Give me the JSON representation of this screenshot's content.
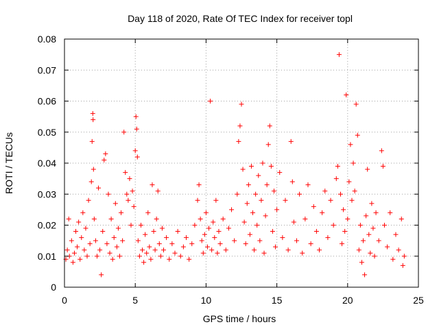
{
  "chart_data": {
    "type": "scatter",
    "title": "Day 118 of 2020, Rate Of TEC Index for receiver topl",
    "xlabel": "GPS time / hours",
    "ylabel": "ROTI / TECUs",
    "xlim": [
      0,
      25
    ],
    "ylim": [
      0,
      0.08
    ],
    "x_ticks": [
      0,
      5,
      10,
      15,
      20,
      25
    ],
    "x_tick_labels": [
      "0",
      "5",
      "10",
      "15",
      "20",
      "25"
    ],
    "y_ticks": [
      0,
      0.01,
      0.02,
      0.03,
      0.04,
      0.05,
      0.06,
      0.07,
      0.08
    ],
    "y_tick_labels": [
      "0",
      "0.01",
      "0.02",
      "0.03",
      "0.04",
      "0.05",
      "0.06",
      "0.07",
      "0.08"
    ],
    "grid": true,
    "marker": "+",
    "series": [
      {
        "name": "ROTI",
        "color": "#ff0000",
        "points": [
          [
            0.1,
            0.009
          ],
          [
            0.2,
            0.012
          ],
          [
            0.3,
            0.022
          ],
          [
            0.35,
            0.01
          ],
          [
            0.5,
            0.015
          ],
          [
            0.6,
            0.008
          ],
          [
            0.7,
            0.011
          ],
          [
            0.8,
            0.018
          ],
          [
            0.9,
            0.013
          ],
          [
            1.0,
            0.021
          ],
          [
            1.1,
            0.009
          ],
          [
            1.2,
            0.016
          ],
          [
            1.3,
            0.024
          ],
          [
            1.4,
            0.012
          ],
          [
            1.5,
            0.019
          ],
          [
            1.6,
            0.01
          ],
          [
            1.7,
            0.028
          ],
          [
            1.8,
            0.014
          ],
          [
            1.9,
            0.034
          ],
          [
            1.95,
            0.047
          ],
          [
            2.0,
            0.056
          ],
          [
            2.02,
            0.054
          ],
          [
            2.05,
            0.038
          ],
          [
            2.1,
            0.022
          ],
          [
            2.2,
            0.015
          ],
          [
            2.3,
            0.01
          ],
          [
            2.4,
            0.032
          ],
          [
            2.5,
            0.012
          ],
          [
            2.6,
            0.004
          ],
          [
            2.7,
            0.018
          ],
          [
            2.8,
            0.041
          ],
          [
            2.9,
            0.043
          ],
          [
            3.0,
            0.014
          ],
          [
            3.1,
            0.03
          ],
          [
            3.2,
            0.011
          ],
          [
            3.3,
            0.022
          ],
          [
            3.4,
            0.009
          ],
          [
            3.5,
            0.016
          ],
          [
            3.6,
            0.027
          ],
          [
            3.7,
            0.013
          ],
          [
            3.8,
            0.019
          ],
          [
            3.9,
            0.01
          ],
          [
            4.0,
            0.024
          ],
          [
            4.1,
            0.015
          ],
          [
            4.2,
            0.05
          ],
          [
            4.3,
            0.037
          ],
          [
            4.4,
            0.03
          ],
          [
            4.5,
            0.028
          ],
          [
            4.6,
            0.035
          ],
          [
            4.7,
            0.02
          ],
          [
            4.8,
            0.031
          ],
          [
            4.9,
            0.026
          ],
          [
            5.0,
            0.044
          ],
          [
            5.05,
            0.055
          ],
          [
            5.1,
            0.051
          ],
          [
            5.15,
            0.042
          ],
          [
            5.2,
            0.015
          ],
          [
            5.3,
            0.01
          ],
          [
            5.4,
            0.02
          ],
          [
            5.5,
            0.012
          ],
          [
            5.6,
            0.008
          ],
          [
            5.7,
            0.017
          ],
          [
            5.8,
            0.011
          ],
          [
            5.9,
            0.024
          ],
          [
            6.0,
            0.013
          ],
          [
            6.1,
            0.009
          ],
          [
            6.2,
            0.033
          ],
          [
            6.3,
            0.018
          ],
          [
            6.4,
            0.012
          ],
          [
            6.5,
            0.022
          ],
          [
            6.6,
            0.031
          ],
          [
            6.7,
            0.014
          ],
          [
            6.8,
            0.01
          ],
          [
            6.9,
            0.019
          ],
          [
            7.0,
            0.012
          ],
          [
            7.2,
            0.016
          ],
          [
            7.4,
            0.009
          ],
          [
            7.6,
            0.014
          ],
          [
            7.8,
            0.011
          ],
          [
            8.0,
            0.018
          ],
          [
            8.2,
            0.01
          ],
          [
            8.4,
            0.013
          ],
          [
            8.6,
            0.016
          ],
          [
            8.8,
            0.009
          ],
          [
            9.0,
            0.014
          ],
          [
            9.2,
            0.02
          ],
          [
            9.4,
            0.028
          ],
          [
            9.5,
            0.033
          ],
          [
            9.6,
            0.022
          ],
          [
            9.7,
            0.015
          ],
          [
            9.8,
            0.011
          ],
          [
            9.9,
            0.017
          ],
          [
            10.0,
            0.024
          ],
          [
            10.1,
            0.013
          ],
          [
            10.2,
            0.019
          ],
          [
            10.3,
            0.06
          ],
          [
            10.4,
            0.012
          ],
          [
            10.5,
            0.021
          ],
          [
            10.6,
            0.016
          ],
          [
            10.7,
            0.028
          ],
          [
            10.8,
            0.011
          ],
          [
            10.9,
            0.018
          ],
          [
            11.0,
            0.014
          ],
          [
            11.2,
            0.022
          ],
          [
            11.4,
            0.012
          ],
          [
            11.6,
            0.019
          ],
          [
            11.8,
            0.025
          ],
          [
            12.0,
            0.015
          ],
          [
            12.2,
            0.03
          ],
          [
            12.3,
            0.047
          ],
          [
            12.4,
            0.052
          ],
          [
            12.5,
            0.059
          ],
          [
            12.6,
            0.038
          ],
          [
            12.7,
            0.021
          ],
          [
            12.8,
            0.014
          ],
          [
            12.9,
            0.027
          ],
          [
            13.0,
            0.033
          ],
          [
            13.1,
            0.017
          ],
          [
            13.2,
            0.039
          ],
          [
            13.3,
            0.024
          ],
          [
            13.4,
            0.012
          ],
          [
            13.5,
            0.03
          ],
          [
            13.6,
            0.02
          ],
          [
            13.7,
            0.036
          ],
          [
            13.8,
            0.015
          ],
          [
            13.9,
            0.028
          ],
          [
            14.0,
            0.04
          ],
          [
            14.1,
            0.011
          ],
          [
            14.2,
            0.023
          ],
          [
            14.3,
            0.033
          ],
          [
            14.4,
            0.046
          ],
          [
            14.5,
            0.052
          ],
          [
            14.6,
            0.039
          ],
          [
            14.7,
            0.018
          ],
          [
            14.8,
            0.031
          ],
          [
            14.9,
            0.013
          ],
          [
            15.0,
            0.025
          ],
          [
            15.2,
            0.037
          ],
          [
            15.4,
            0.016
          ],
          [
            15.6,
            0.028
          ],
          [
            15.8,
            0.012
          ],
          [
            16.0,
            0.047
          ],
          [
            16.1,
            0.034
          ],
          [
            16.2,
            0.021
          ],
          [
            16.4,
            0.015
          ],
          [
            16.6,
            0.03
          ],
          [
            16.8,
            0.011
          ],
          [
            17.0,
            0.022
          ],
          [
            17.2,
            0.033
          ],
          [
            17.4,
            0.014
          ],
          [
            17.6,
            0.026
          ],
          [
            17.8,
            0.018
          ],
          [
            18.0,
            0.012
          ],
          [
            18.2,
            0.024
          ],
          [
            18.4,
            0.031
          ],
          [
            18.6,
            0.016
          ],
          [
            18.8,
            0.028
          ],
          [
            19.0,
            0.02
          ],
          [
            19.2,
            0.035
          ],
          [
            19.3,
            0.039
          ],
          [
            19.4,
            0.075
          ],
          [
            19.5,
            0.03
          ],
          [
            19.6,
            0.014
          ],
          [
            19.7,
            0.025
          ],
          [
            19.8,
            0.018
          ],
          [
            19.9,
            0.062
          ],
          [
            20.0,
            0.022
          ],
          [
            20.1,
            0.034
          ],
          [
            20.2,
            0.046
          ],
          [
            20.3,
            0.028
          ],
          [
            20.4,
            0.04
          ],
          [
            20.5,
            0.031
          ],
          [
            20.6,
            0.059
          ],
          [
            20.7,
            0.049
          ],
          [
            20.8,
            0.012
          ],
          [
            20.9,
            0.02
          ],
          [
            21.0,
            0.008
          ],
          [
            21.1,
            0.015
          ],
          [
            21.2,
            0.004
          ],
          [
            21.3,
            0.023
          ],
          [
            21.4,
            0.038
          ],
          [
            21.5,
            0.017
          ],
          [
            21.6,
            0.011
          ],
          [
            21.7,
            0.027
          ],
          [
            21.8,
            0.019
          ],
          [
            21.9,
            0.01
          ],
          [
            22.0,
            0.024
          ],
          [
            22.2,
            0.015
          ],
          [
            22.4,
            0.044
          ],
          [
            22.5,
            0.039
          ],
          [
            22.6,
            0.02
          ],
          [
            22.8,
            0.013
          ],
          [
            23.0,
            0.024
          ],
          [
            23.2,
            0.009
          ],
          [
            23.4,
            0.017
          ],
          [
            23.6,
            0.012
          ],
          [
            23.8,
            0.022
          ],
          [
            23.9,
            0.007
          ],
          [
            24.0,
            0.01
          ]
        ]
      }
    ]
  }
}
